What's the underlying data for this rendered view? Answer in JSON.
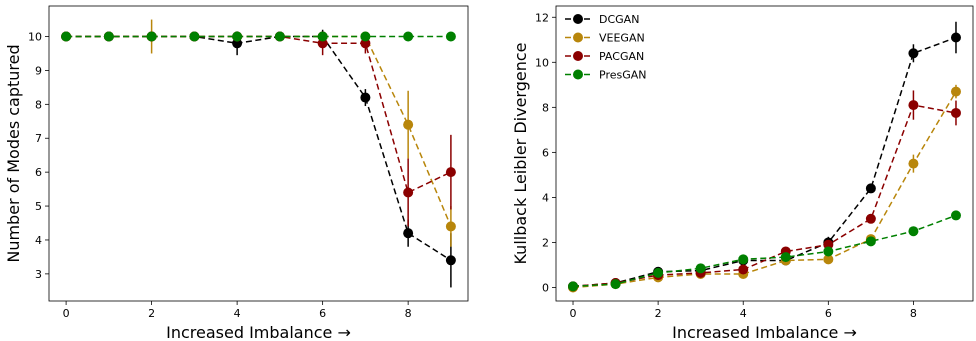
{
  "chart_data": [
    {
      "type": "line",
      "xlabel": "Increased Imbalance →",
      "ylabel": "Number of Modes captured",
      "xlim": [
        -0.4,
        9.4
      ],
      "ylim": [
        2.2,
        10.9
      ],
      "xticks": [
        0,
        2,
        4,
        6,
        8
      ],
      "yticks": [
        3,
        4,
        5,
        6,
        7,
        8,
        9,
        10
      ],
      "x": [
        0,
        1,
        2,
        3,
        4,
        5,
        6,
        7,
        8,
        9
      ],
      "legend": "none",
      "series": [
        {
          "name": "DCGAN",
          "color": "#000000",
          "values": [
            10,
            10,
            10,
            10,
            9.8,
            10,
            10,
            8.2,
            4.2,
            3.4
          ],
          "err": [
            0,
            0,
            0,
            0,
            0.35,
            0,
            0.2,
            0.25,
            0.4,
            0.8
          ]
        },
        {
          "name": "VEEGAN",
          "color": "#b8860b",
          "values": [
            10,
            10,
            10,
            10,
            10,
            10,
            10,
            10,
            7.4,
            4.4
          ],
          "err": [
            0,
            0,
            0.5,
            0,
            0,
            0,
            0,
            0,
            1.0,
            0.6
          ]
        },
        {
          "name": "PACGAN",
          "color": "#8b0000",
          "values": [
            10,
            10,
            10,
            10,
            10,
            10,
            9.8,
            9.8,
            5.4,
            6.0
          ],
          "err": [
            0,
            0,
            0,
            0,
            0,
            0,
            0.35,
            0.3,
            1.0,
            1.1
          ]
        },
        {
          "name": "PresGAN",
          "color": "#008000",
          "values": [
            10,
            10,
            10,
            10,
            10,
            10,
            10,
            10,
            10,
            10
          ],
          "err": [
            0,
            0,
            0,
            0,
            0.15,
            0,
            0,
            0,
            0,
            0
          ]
        }
      ]
    },
    {
      "type": "line",
      "xlabel": "Increased Imbalance →",
      "ylabel": "Kullback Leibler Divergence",
      "xlim": [
        -0.4,
        9.4
      ],
      "ylim": [
        -0.6,
        12.5
      ],
      "xticks": [
        0,
        2,
        4,
        6,
        8
      ],
      "yticks": [
        0,
        2,
        4,
        6,
        8,
        10,
        12
      ],
      "x": [
        0,
        1,
        2,
        3,
        4,
        5,
        6,
        7,
        8,
        9
      ],
      "legend": "top-left",
      "series": [
        {
          "name": "DCGAN",
          "color": "#000000",
          "values": [
            0.05,
            0.2,
            0.7,
            0.75,
            1.2,
            1.2,
            2.0,
            4.4,
            10.4,
            11.1
          ],
          "err": [
            0,
            0.05,
            0.1,
            0.1,
            0.1,
            0.1,
            0.25,
            0.2,
            0.4,
            0.7
          ]
        },
        {
          "name": "VEEGAN",
          "color": "#b8860b",
          "values": [
            0.0,
            0.15,
            0.45,
            0.6,
            0.6,
            1.2,
            1.25,
            2.15,
            5.5,
            8.7
          ],
          "err": [
            0,
            0.05,
            0.1,
            0.1,
            0.1,
            0.1,
            0.1,
            0.2,
            0.4,
            0.3
          ]
        },
        {
          "name": "PACGAN",
          "color": "#8b0000",
          "values": [
            0.05,
            0.2,
            0.55,
            0.65,
            0.8,
            1.6,
            1.9,
            3.05,
            8.1,
            7.75
          ],
          "err": [
            0,
            0.05,
            0.1,
            0.1,
            0.1,
            0.15,
            0.2,
            0.2,
            0.65,
            0.55
          ]
        },
        {
          "name": "PresGAN",
          "color": "#008000",
          "values": [
            0.05,
            0.15,
            0.65,
            0.85,
            1.25,
            1.35,
            1.6,
            2.05,
            2.5,
            3.2
          ],
          "err": [
            0,
            0.05,
            0.05,
            0.05,
            0.1,
            0.1,
            0.1,
            0.1,
            0.1,
            0.15
          ]
        }
      ]
    }
  ]
}
